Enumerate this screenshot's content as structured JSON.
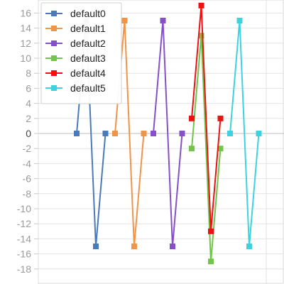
{
  "chart_data": {
    "type": "line",
    "title": "",
    "xlabel": "",
    "ylabel": "",
    "ylim": [
      -19,
      17
    ],
    "y_ticks": [
      16,
      14,
      12,
      10,
      8,
      6,
      4,
      2,
      0,
      -2,
      -4,
      -6,
      -8,
      -10,
      -12,
      -14,
      -16,
      -18
    ],
    "xlim": [
      0,
      25
    ],
    "grid": true,
    "legend_position": "top-left",
    "series": [
      {
        "name": "default0",
        "color": "#4a7ab8",
        "x": [
          4,
          5,
          6,
          7
        ],
        "y": [
          0,
          15,
          -15,
          0
        ]
      },
      {
        "name": "default1",
        "color": "#f0944a",
        "x": [
          8,
          9,
          10,
          11
        ],
        "y": [
          0,
          15,
          -15,
          0
        ]
      },
      {
        "name": "default2",
        "color": "#8550c8",
        "x": [
          12,
          13,
          14,
          15
        ],
        "y": [
          0,
          15,
          -15,
          0
        ]
      },
      {
        "name": "default3",
        "color": "#72c44a",
        "x": [
          16,
          17,
          18,
          19
        ],
        "y": [
          -2,
          13,
          -17,
          -2
        ]
      },
      {
        "name": "default4",
        "color": "#ee1111",
        "x": [
          16,
          17,
          18,
          19
        ],
        "y": [
          2,
          17,
          -13,
          2
        ]
      },
      {
        "name": "default5",
        "color": "#3ed2de",
        "x": [
          20,
          21,
          22,
          23
        ],
        "y": [
          0,
          15,
          -15,
          0
        ]
      }
    ]
  }
}
